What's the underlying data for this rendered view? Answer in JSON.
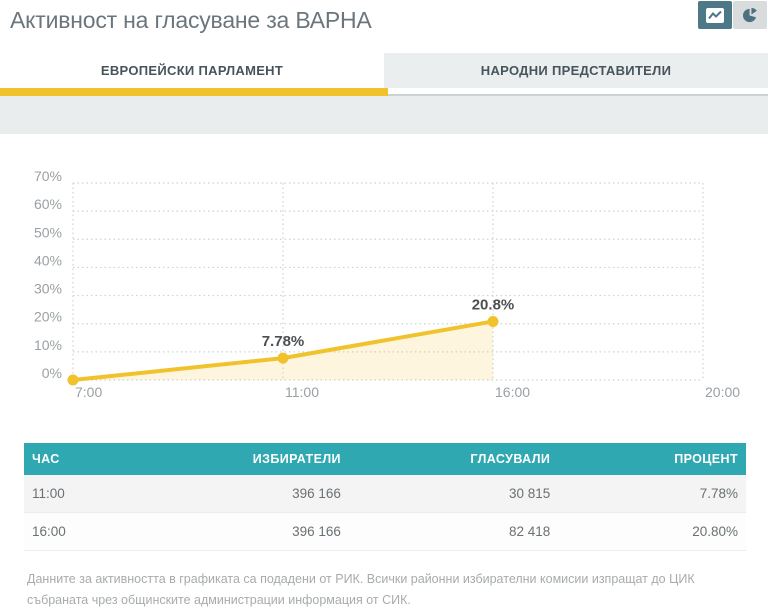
{
  "page": {
    "title": "Активност на гласуване за ВАРНА"
  },
  "toolbar": {
    "icons": {
      "active_view": "line-chart-icon",
      "alt_view": "pie-chart-icon"
    }
  },
  "tabs": {
    "items": [
      {
        "label": "ЕВРОПЕЙСКИ ПАРЛАМЕНТ",
        "active": true
      },
      {
        "label": "НАРОДНИ ПРЕДСТАВИТЕЛИ",
        "active": false
      }
    ]
  },
  "chart_data": {
    "type": "line",
    "title": "",
    "x_categories": [
      "7:00",
      "11:00",
      "16:00",
      "20:00"
    ],
    "series": [
      {
        "name": "Активност на гласуване",
        "points": [
          {
            "x": "7:00",
            "y": 0,
            "label": ""
          },
          {
            "x": "11:00",
            "y": 7.78,
            "label": "7.78%"
          },
          {
            "x": "16:00",
            "y": 20.8,
            "label": "20.8%"
          }
        ]
      }
    ],
    "ylim": [
      0,
      70
    ],
    "y_ticks": [
      {
        "value": 0,
        "label": "0%"
      },
      {
        "value": 10,
        "label": "10%"
      },
      {
        "value": 20,
        "label": "20%"
      },
      {
        "value": 30,
        "label": "30%"
      },
      {
        "value": 40,
        "label": "40%"
      },
      {
        "value": 50,
        "label": "50%"
      },
      {
        "value": 60,
        "label": "60%"
      },
      {
        "value": 70,
        "label": "70%"
      }
    ],
    "grid": true,
    "legend": false,
    "line_color": "#F0C22C",
    "point_color": "#F0C22C",
    "fill_color": "rgba(240,194,44,0.16)"
  },
  "table": {
    "columns": [
      "ЧАС",
      "ИЗБИРАТЕЛИ",
      "ГЛАСУВАЛИ",
      "ПРОЦЕНТ"
    ],
    "rows": [
      [
        "11:00",
        "396 166",
        "30 815",
        "7.78%"
      ],
      [
        "16:00",
        "396 166",
        "82 418",
        "20.80%"
      ]
    ]
  },
  "footer": {
    "note": "Данните за активността в графиката са подадени от РИК. Всички районни избирателни комисии изпращат до ЦИК събраната чрез общинските администрации информация от СИК."
  },
  "colors": {
    "accent_yellow": "#F0C22C",
    "table_header_teal": "#2FA8B2",
    "active_view_button": "#4C7888",
    "spacer_band": "#E9EDEE"
  }
}
